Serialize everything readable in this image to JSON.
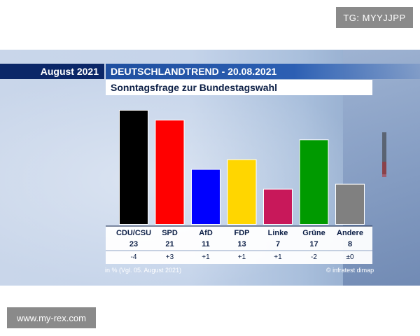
{
  "watermarks": {
    "top": "TG: MYYJJPP",
    "bottom": "www.my-rex.com"
  },
  "header": {
    "date_label": "August 2021",
    "title": "DEUTSCHLANDTREND - 20.08.2021",
    "subtitle": "Sonntagsfrage zur Bundestagswahl"
  },
  "footer": {
    "note": "in % (Vgl. 05. August 2021)",
    "source": "© infratest dimap"
  },
  "chart_data": {
    "type": "bar",
    "title": "Sonntagsfrage zur Bundestagswahl",
    "categories": [
      "CDU/CSU",
      "SPD",
      "AfD",
      "FDP",
      "Linke",
      "Grüne",
      "Andere"
    ],
    "values": [
      23,
      21,
      11,
      13,
      7,
      17,
      8
    ],
    "changes": [
      "-4",
      "+3",
      "+1",
      "+1",
      "+1",
      "-2",
      "±0"
    ],
    "colors": [
      "#000000",
      "#ff0000",
      "#0000ff",
      "#ffd600",
      "#c8185a",
      "#009a00",
      "#808080"
    ],
    "unit": "%",
    "ylim": [
      0,
      23
    ],
    "grid": false,
    "legend": "none"
  }
}
